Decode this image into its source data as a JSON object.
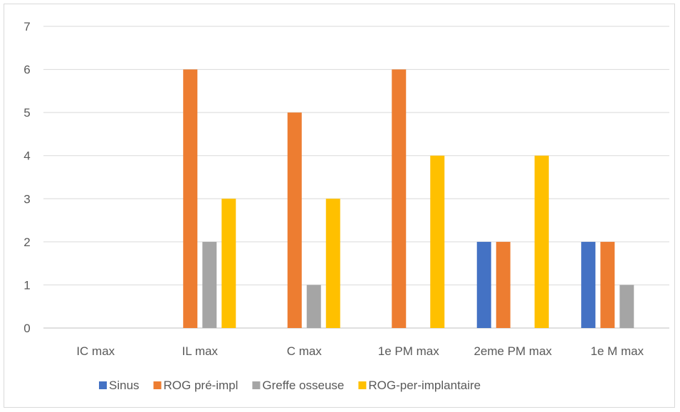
{
  "chart_data": {
    "type": "bar",
    "categories": [
      "IC max",
      "IL max",
      "C max",
      "1e PM max",
      "2eme PM max",
      "1e M max"
    ],
    "series": [
      {
        "name": "Sinus",
        "color": "#4472c4",
        "values": [
          0,
          0,
          0,
          0,
          2,
          2
        ]
      },
      {
        "name": "ROG pré-impl",
        "color": "#ed7d31",
        "values": [
          0,
          6,
          5,
          6,
          2,
          2
        ]
      },
      {
        "name": "Greffe osseuse",
        "color": "#a5a5a5",
        "values": [
          0,
          2,
          1,
          0,
          0,
          1
        ]
      },
      {
        "name": "ROG-per-implantaire",
        "color": "#ffc000",
        "values": [
          0,
          3,
          3,
          4,
          4,
          0
        ]
      }
    ],
    "ylim": [
      0,
      7
    ],
    "yticks": [
      "0",
      "1",
      "2",
      "3",
      "4",
      "5",
      "6",
      "7"
    ],
    "grid": true,
    "legend_position": "bottom",
    "title": "",
    "xlabel": "",
    "ylabel": ""
  }
}
